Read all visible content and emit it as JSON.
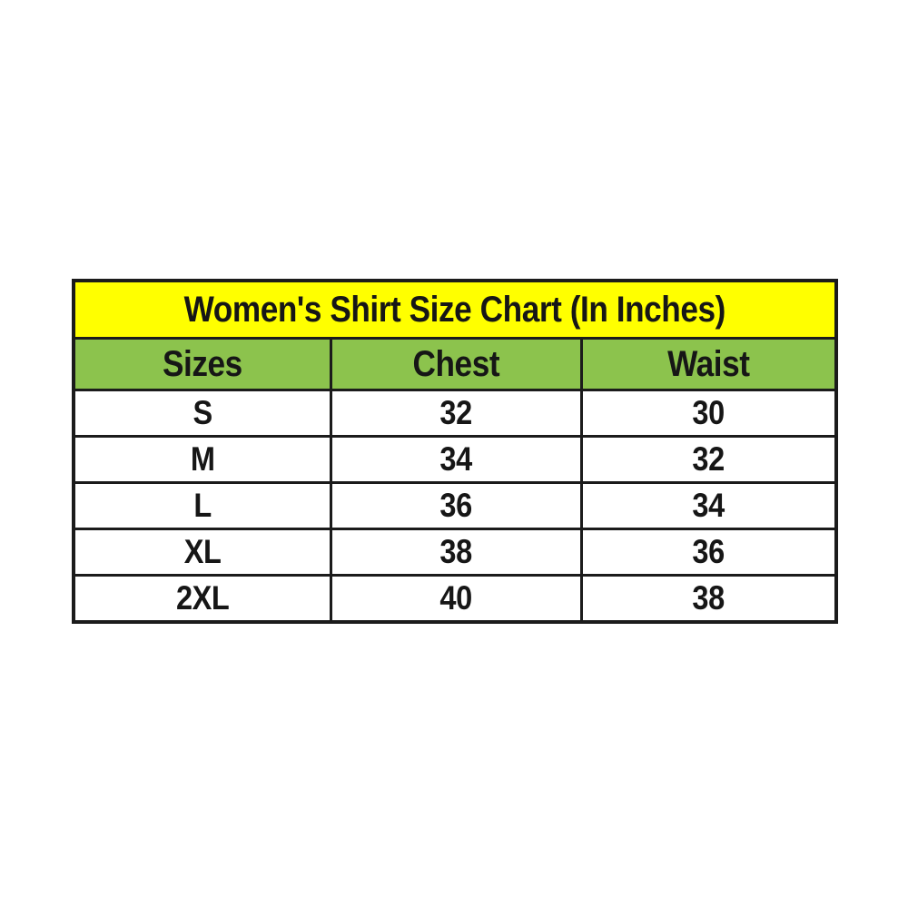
{
  "colors": {
    "title_background": "#ffff00",
    "header_background": "#8cc34d",
    "row_background": "#ffffff",
    "gridline": "#1b1b1b",
    "text": "#161616"
  },
  "table": {
    "title": "Women's Shirt Size Chart (In Inches)",
    "columns": [
      "Sizes",
      "Chest",
      "Waist"
    ],
    "rows": [
      [
        "S",
        "32",
        "30"
      ],
      [
        "M",
        "34",
        "32"
      ],
      [
        "L",
        "36",
        "34"
      ],
      [
        "XL",
        "38",
        "36"
      ],
      [
        "2XL",
        "40",
        "38"
      ]
    ]
  },
  "chart_data": {
    "type": "table",
    "title": "Women's Shirt Size Chart (In Inches)",
    "units": "inches",
    "columns": [
      "Sizes",
      "Chest",
      "Waist"
    ],
    "rows": [
      {
        "size": "S",
        "chest": 32,
        "waist": 30
      },
      {
        "size": "M",
        "chest": 34,
        "waist": 32
      },
      {
        "size": "L",
        "chest": 36,
        "waist": 34
      },
      {
        "size": "XL",
        "chest": 38,
        "waist": 36
      },
      {
        "size": "2XL",
        "chest": 40,
        "waist": 38
      }
    ]
  }
}
